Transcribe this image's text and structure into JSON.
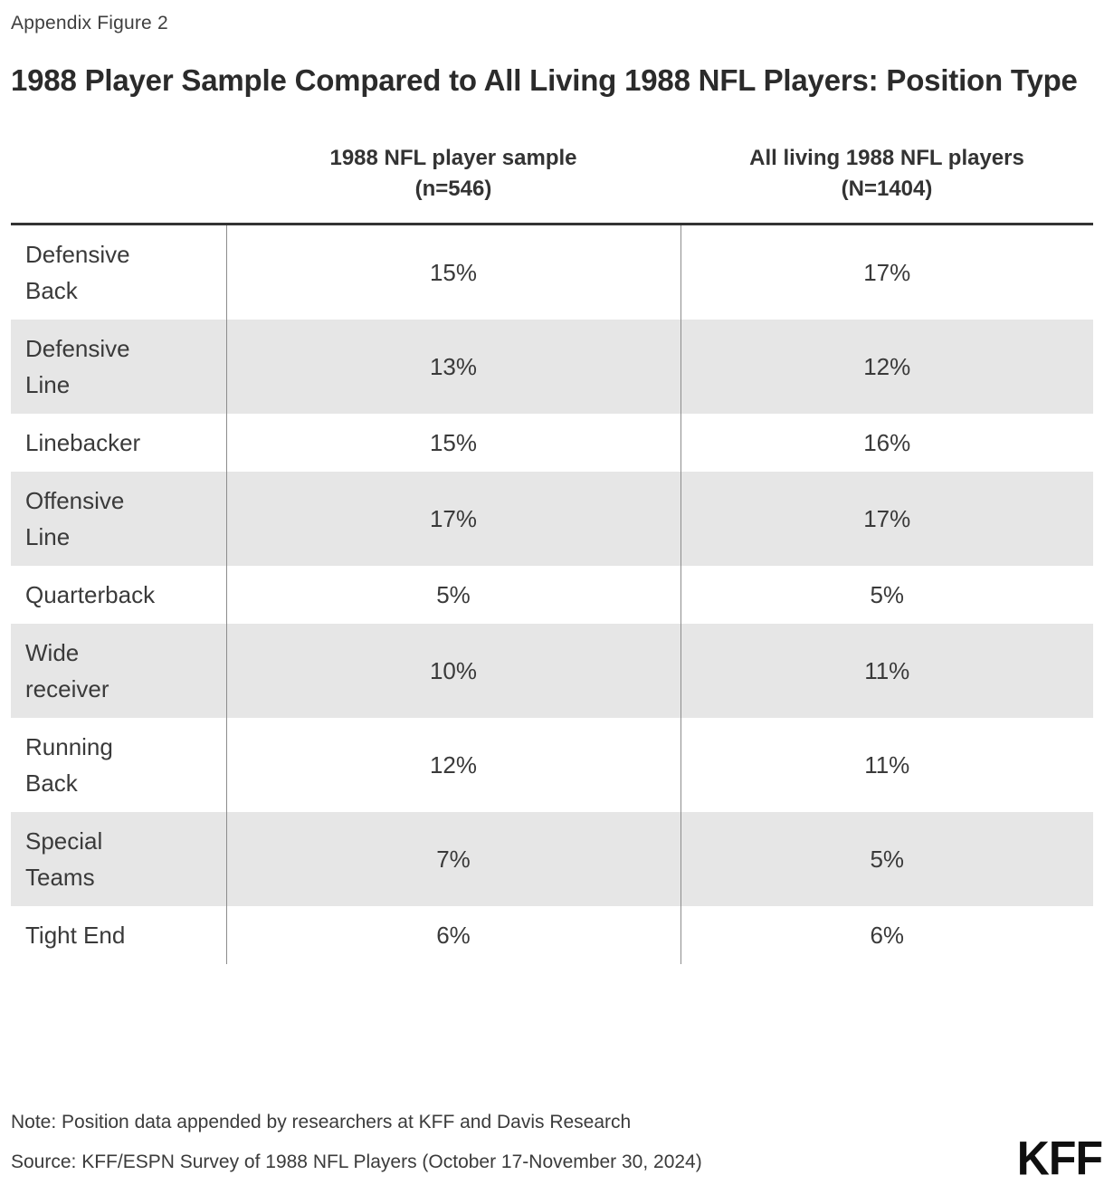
{
  "page": {
    "figure_label": "Appendix Figure 2",
    "title": "1988 Player Sample Compared to All Living 1988 NFL Players: Position Type",
    "note": "Note: Position data appended by researchers at KFF and Davis Research",
    "source": "Source: KFF/ESPN Survey of 1988 NFL Players (October 17-November 30, 2024)",
    "logo_text": "KFF"
  },
  "colors": {
    "title_text": "#2b2b2b",
    "body_text": "#3a3a3a",
    "alt_row_bg": "#e6e6e6",
    "header_rule": "#333333",
    "column_divider": "#8c8c8c",
    "logo_text": "#0f0f0f"
  },
  "chart_data": {
    "type": "table",
    "title": "1988 Player Sample Compared to All Living 1988 NFL Players: Position Type",
    "columns": [
      {
        "label": "",
        "sublabel": ""
      },
      {
        "label": "1988 NFL player sample",
        "sublabel": "(n=546)"
      },
      {
        "label": "All living 1988 NFL players",
        "sublabel": "(N=1404)"
      }
    ],
    "rows": [
      {
        "position": "Defensive\nBack",
        "sample_pct": "15%",
        "all_living_pct": "17%"
      },
      {
        "position": "Defensive\nLine",
        "sample_pct": "13%",
        "all_living_pct": "12%"
      },
      {
        "position": "Linebacker",
        "sample_pct": "15%",
        "all_living_pct": "16%"
      },
      {
        "position": "Offensive\nLine",
        "sample_pct": "17%",
        "all_living_pct": "17%"
      },
      {
        "position": "Quarterback",
        "sample_pct": "5%",
        "all_living_pct": "5%"
      },
      {
        "position": "Wide\nreceiver",
        "sample_pct": "10%",
        "all_living_pct": "11%"
      },
      {
        "position": "Running\nBack",
        "sample_pct": "12%",
        "all_living_pct": "11%"
      },
      {
        "position": "Special\nTeams",
        "sample_pct": "7%",
        "all_living_pct": "5%"
      },
      {
        "position": "Tight End",
        "sample_pct": "6%",
        "all_living_pct": "6%"
      }
    ]
  }
}
